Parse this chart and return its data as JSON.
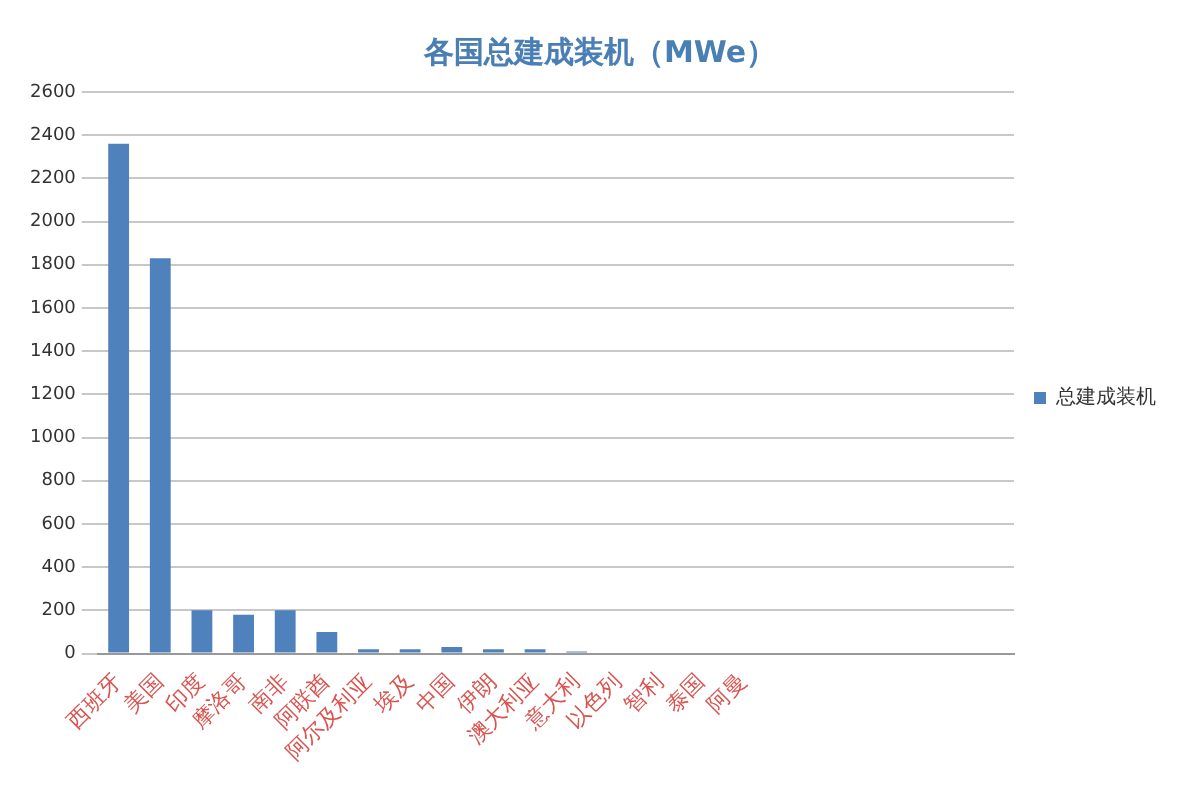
{
  "chart_data": {
    "type": "bar",
    "title": "各国总建成装机（MWe）",
    "categories": [
      "西班牙",
      "美国",
      "印度",
      "摩洛哥",
      "南非",
      "阿联酋",
      "阿尔及利亚",
      "埃及",
      "中国",
      "伊朗",
      "澳大利亚",
      "意大利",
      "以色列",
      "智利",
      "泰国",
      "阿曼",
      null,
      null,
      null,
      null,
      null,
      null
    ],
    "series": [
      {
        "name": "总建成装机",
        "color": "#4f81bd",
        "values": [
          2360,
          1830,
          200,
          180,
          200,
          100,
          20,
          20,
          30,
          20,
          20,
          10,
          0,
          0,
          0,
          0,
          0,
          0,
          0,
          0,
          0,
          0
        ]
      }
    ],
    "ylim": [
      0,
      2600
    ],
    "yticks": [
      0,
      200,
      400,
      600,
      800,
      1000,
      1200,
      1400,
      1600,
      1800,
      2000,
      2200,
      2400,
      2600
    ],
    "grid": "y",
    "legend": "right"
  }
}
